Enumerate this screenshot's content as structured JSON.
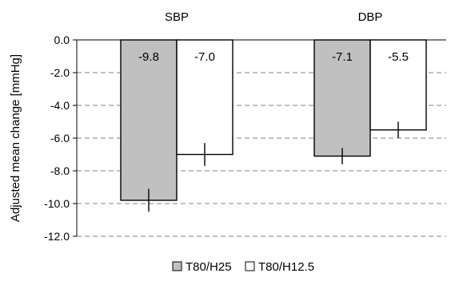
{
  "chart_data": {
    "type": "bar",
    "categories": [
      "SBP",
      "DBP"
    ],
    "series": [
      {
        "name": "T80/H25",
        "values": [
          -9.8,
          -7.1
        ],
        "color": "#c0c0c0",
        "error": [
          0.7,
          0.5
        ]
      },
      {
        "name": "T80/H12.5",
        "values": [
          -7.0,
          -5.5
        ],
        "color": "#ffffff",
        "error": [
          0.7,
          0.5
        ]
      }
    ],
    "data_labels": [
      [
        "-9.8",
        "-7.1"
      ],
      [
        "-7.0",
        "-5.5"
      ]
    ],
    "ylabel": "Adjusted mean change [mmHg]",
    "ylim": [
      -12.0,
      0.0
    ],
    "yticks": [
      0.0,
      -2.0,
      -4.0,
      -6.0,
      -8.0,
      -10.0,
      -12.0
    ],
    "ytick_labels": [
      "0.0",
      "-2.0",
      "-4.0",
      "-6.0",
      "-8.0",
      "-10.0",
      "-12.0"
    ],
    "grid": "dashed horizontal",
    "legend_position": "bottom-center"
  }
}
